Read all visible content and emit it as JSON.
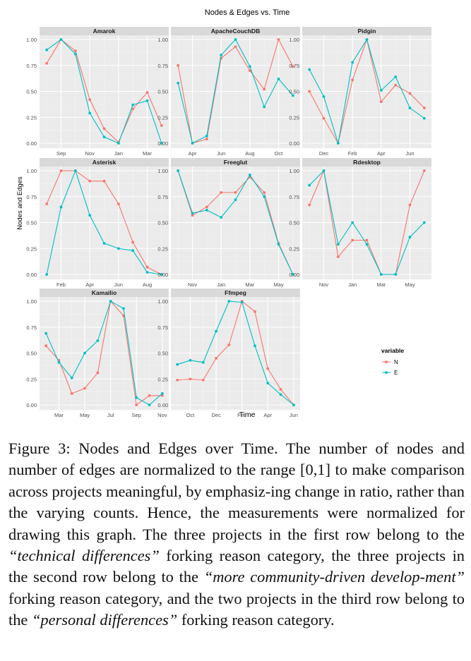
{
  "chart_data": {
    "type": "line",
    "title": "Nodes & Edges vs. Time",
    "xlabel": "Time",
    "ylabel": "Nodes and Edges",
    "ylim": [
      0,
      1
    ],
    "yticks": [
      "0.00",
      "0.25",
      "0.50",
      "0.75",
      "1.00"
    ],
    "grid": true,
    "legend": {
      "title": "variable",
      "position": "right",
      "entries": [
        "N",
        "E"
      ]
    },
    "colors": {
      "N": "#F8766D",
      "E": "#00BFC4",
      "panel": "#EBEBEB",
      "strip": "#D9D9D9"
    },
    "panels": [
      {
        "name": "Amarok",
        "xticks": [
          {
            "label": "Sep",
            "x": 2
          },
          {
            "label": "Nov",
            "x": 4
          },
          {
            "label": "Jan",
            "x": 6
          },
          {
            "label": "Mar",
            "x": 8
          }
        ],
        "xrange": [
          0.5,
          9.5
        ],
        "x": [
          1,
          2,
          3,
          4,
          5,
          6,
          7,
          8,
          9
        ],
        "series": [
          {
            "name": "N",
            "values": [
              0.77,
              1.0,
              0.89,
              0.42,
              0.14,
              0.01,
              0.33,
              0.49,
              0.17
            ]
          },
          {
            "name": "E",
            "values": [
              0.9,
              1.0,
              0.86,
              0.29,
              0.06,
              0.0,
              0.37,
              0.41,
              0.0
            ]
          }
        ]
      },
      {
        "name": "ApacheCouchDB",
        "xticks": [
          {
            "label": "Apr",
            "x": 2
          },
          {
            "label": "Jun",
            "x": 4
          },
          {
            "label": "Aug",
            "x": 6
          },
          {
            "label": "Oct",
            "x": 8
          }
        ],
        "xrange": [
          0.5,
          9.5
        ],
        "x": [
          1,
          2,
          3,
          4,
          5,
          6,
          7,
          8,
          9
        ],
        "series": [
          {
            "name": "N",
            "values": [
              0.75,
              0.0,
              0.04,
              0.82,
              0.93,
              0.7,
              0.52,
              1.0,
              0.74
            ]
          },
          {
            "name": "E",
            "values": [
              0.58,
              0.0,
              0.07,
              0.85,
              1.0,
              0.74,
              0.35,
              0.62,
              0.46
            ]
          }
        ]
      },
      {
        "name": "Pidgin",
        "xticks": [
          {
            "label": "Dec",
            "x": 2
          },
          {
            "label": "Feb",
            "x": 4
          },
          {
            "label": "Apr",
            "x": 6
          },
          {
            "label": "Jun",
            "x": 8
          }
        ],
        "xrange": [
          0.5,
          9.5
        ],
        "x": [
          1,
          2,
          3,
          4,
          5,
          6,
          7,
          8,
          9
        ],
        "series": [
          {
            "name": "N",
            "values": [
              0.5,
              0.24,
              0.0,
              0.61,
              1.0,
              0.4,
              0.56,
              0.48,
              0.34
            ]
          },
          {
            "name": "E",
            "values": [
              0.71,
              0.45,
              0.0,
              0.78,
              1.0,
              0.51,
              0.64,
              0.34,
              0.24
            ]
          }
        ]
      },
      {
        "name": "Asterisk",
        "xticks": [
          {
            "label": "Feb",
            "x": 2
          },
          {
            "label": "Apr",
            "x": 4
          },
          {
            "label": "Jun",
            "x": 6
          },
          {
            "label": "Aug",
            "x": 8
          }
        ],
        "xrange": [
          0.5,
          9.5
        ],
        "x": [
          1,
          2,
          3,
          4,
          5,
          6,
          7,
          8,
          9
        ],
        "series": [
          {
            "name": "N",
            "values": [
              0.68,
              1.0,
              1.0,
              0.9,
              0.9,
              0.68,
              0.31,
              0.07,
              0.0
            ]
          },
          {
            "name": "E",
            "values": [
              0.0,
              0.65,
              1.0,
              0.57,
              0.3,
              0.25,
              0.23,
              0.02,
              0.0
            ]
          }
        ]
      },
      {
        "name": "Freeglut",
        "xticks": [
          {
            "label": "Nov",
            "x": 2
          },
          {
            "label": "Jan",
            "x": 4
          },
          {
            "label": "Mar",
            "x": 6
          },
          {
            "label": "May",
            "x": 8
          }
        ],
        "xrange": [
          0.5,
          9.5
        ],
        "x": [
          1,
          2,
          3,
          4,
          5,
          6,
          7,
          8,
          9
        ],
        "series": [
          {
            "name": "N",
            "values": [
              1.0,
              0.57,
              0.65,
              0.79,
              0.79,
              0.94,
              0.79,
              0.3,
              0.0
            ]
          },
          {
            "name": "E",
            "values": [
              1.0,
              0.59,
              0.62,
              0.55,
              0.72,
              0.96,
              0.75,
              0.29,
              0.0
            ]
          }
        ]
      },
      {
        "name": "Rdesktop",
        "xticks": [
          {
            "label": "Nov",
            "x": 2
          },
          {
            "label": "Jan",
            "x": 4
          },
          {
            "label": "Mar",
            "x": 6
          },
          {
            "label": "May",
            "x": 8
          }
        ],
        "xrange": [
          0.5,
          9.5
        ],
        "x": [
          1,
          2,
          3,
          4,
          5,
          6,
          7,
          8,
          9
        ],
        "series": [
          {
            "name": "N",
            "values": [
              0.67,
              1.0,
              0.17,
              0.33,
              0.33,
              0.0,
              0.0,
              0.67,
              1.0
            ]
          },
          {
            "name": "E",
            "values": [
              0.86,
              1.0,
              0.29,
              0.5,
              0.29,
              0.0,
              0.0,
              0.36,
              0.5
            ]
          }
        ]
      },
      {
        "name": "Kamailio",
        "xticks": [
          {
            "label": "Mar",
            "x": 2
          },
          {
            "label": "May",
            "x": 4
          },
          {
            "label": "Jul",
            "x": 6
          },
          {
            "label": "Sep",
            "x": 8
          },
          {
            "label": "Nov",
            "x": 10
          }
        ],
        "xrange": [
          0.5,
          10.5
        ],
        "x": [
          1,
          2,
          3,
          4,
          5,
          6,
          7,
          8,
          9,
          10
        ],
        "series": [
          {
            "name": "N",
            "values": [
              0.57,
              0.43,
              0.11,
              0.16,
              0.31,
              1.0,
              0.86,
              0.0,
              0.09,
              0.09
            ]
          },
          {
            "name": "E",
            "values": [
              0.69,
              0.41,
              0.26,
              0.5,
              0.62,
              1.0,
              0.93,
              0.07,
              0.0,
              0.11
            ]
          }
        ]
      },
      {
        "name": "Ffmpeg",
        "xticks": [
          {
            "label": "Oct",
            "x": 2
          },
          {
            "label": "Dec",
            "x": 4
          },
          {
            "label": "Feb",
            "x": 6
          },
          {
            "label": "Apr",
            "x": 8
          },
          {
            "label": "Jun",
            "x": 10
          }
        ],
        "xrange": [
          0.5,
          10.5
        ],
        "x": [
          1,
          2,
          3,
          4,
          5,
          6,
          7,
          8,
          9,
          10
        ],
        "series": [
          {
            "name": "N",
            "values": [
              0.24,
              0.25,
              0.24,
              0.45,
              0.58,
              1.0,
              0.9,
              0.35,
              0.15,
              0.0
            ]
          },
          {
            "name": "E",
            "values": [
              0.39,
              0.43,
              0.41,
              0.71,
              1.0,
              0.99,
              0.57,
              0.21,
              0.1,
              0.0
            ]
          }
        ]
      }
    ]
  },
  "caption": {
    "label": "Figure 3:",
    "text_1": " Nodes and Edges over Time. The number of nodes and number of edges are normalized to the range [0,1] to make comparison across projects meaningful, by emphasiz-ing change in ratio, rather than the varying counts. Hence, the measurements were normalized for drawing this graph. The three projects in the first row belong to the ",
    "category_1": "“technical differences”",
    "text_2": " forking reason category, the three projects in the second row belong to the ",
    "category_2": "“more community-driven develop-ment”",
    "text_3": " forking reason category, and the two projects in the third row belong to the ",
    "category_3": "“personal differences”",
    "text_4": " forking reason category."
  }
}
